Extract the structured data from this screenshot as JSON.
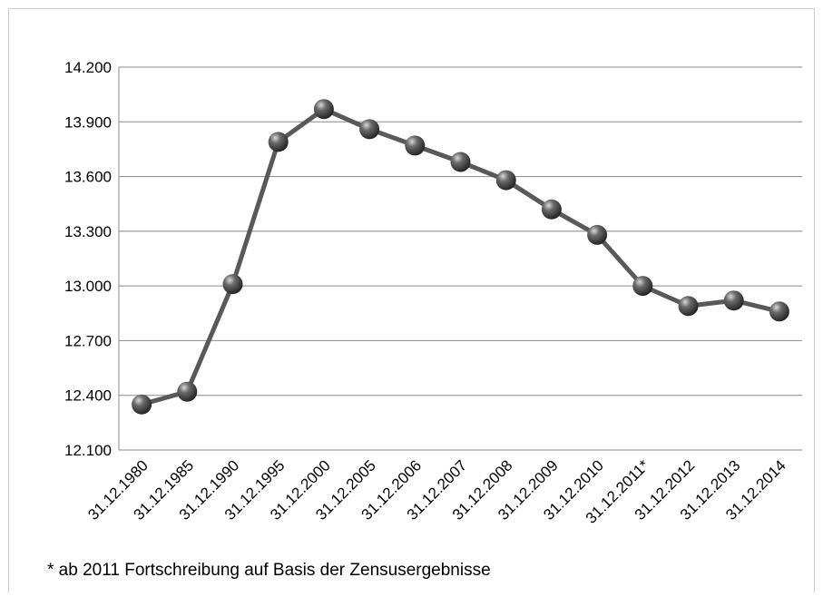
{
  "chart_data": {
    "type": "line",
    "categories": [
      "31.12.1980",
      "31.12.1985",
      "31.12.1990",
      "31.12.1995",
      "31.12.2000",
      "31.12.2005",
      "31.12.2006",
      "31.12.2007",
      "31.12.2008",
      "31.12.2009",
      "31.12.2010",
      "31.12.2011*",
      "31.12.2012",
      "31.12.2013",
      "31.12.2014"
    ],
    "series": [
      {
        "color": "#595959",
        "values": [
          12350,
          12420,
          13010,
          13790,
          13970,
          13860,
          13770,
          13680,
          13580,
          13420,
          13280,
          13000,
          12890,
          12920,
          12860
        ]
      }
    ],
    "ylim": [
      12100,
      14200
    ],
    "yticks": [
      {
        "value": 12100,
        "label": "12.100"
      },
      {
        "value": 12400,
        "label": "12.400"
      },
      {
        "value": 12700,
        "label": "12.700"
      },
      {
        "value": 13000,
        "label": "13.000"
      },
      {
        "value": 13300,
        "label": "13.300"
      },
      {
        "value": 13600,
        "label": "13.600"
      },
      {
        "value": 13900,
        "label": "13.900"
      },
      {
        "value": 14200,
        "label": "14.200"
      }
    ],
    "grid": true,
    "annotation": "* ab 2011 Fortschreibung auf Basis der Zensusergebnisse"
  }
}
